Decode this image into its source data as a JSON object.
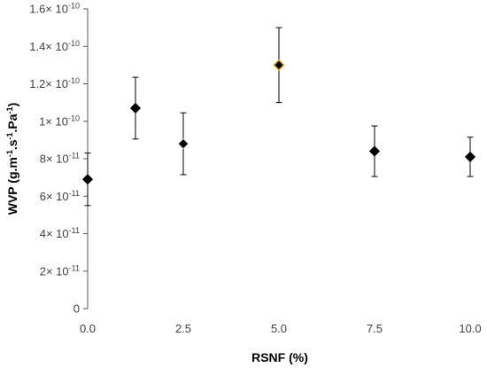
{
  "chart_data": {
    "type": "scatter",
    "xlabel": "RSNF (%)",
    "ylabel_parts": {
      "base": "WVP (g.m",
      "sup1": "-1",
      "mid1": ".s",
      "sup2": "-1",
      "mid2": ".Pa",
      "sup3": "-1",
      "end": ")"
    },
    "xlim": [
      0,
      10
    ],
    "ylim": [
      0,
      1.6e-10
    ],
    "x_ticks": [
      0,
      2.5,
      5,
      7.5,
      10
    ],
    "x_tick_labels": [
      "0.0",
      "2.5",
      "5.0",
      "7.5",
      "10.0"
    ],
    "y_ticks": [
      {
        "value": 0,
        "mantissa": "0",
        "exp": ""
      },
      {
        "value": 2e-11,
        "mantissa": "2",
        "exp": "-11"
      },
      {
        "value": 4e-11,
        "mantissa": "4",
        "exp": "-11"
      },
      {
        "value": 6e-11,
        "mantissa": "6",
        "exp": "-11"
      },
      {
        "value": 8e-11,
        "mantissa": "8",
        "exp": "-11"
      },
      {
        "value": 1e-10,
        "mantissa": "1",
        "exp": "-10"
      },
      {
        "value": 1.2e-10,
        "mantissa": "1.2",
        "exp": "-10"
      },
      {
        "value": 1.4e-10,
        "mantissa": "1.4",
        "exp": "-10"
      },
      {
        "value": 1.6e-10,
        "mantissa": "1.6",
        "exp": "-10"
      }
    ],
    "points": [
      {
        "x": 0,
        "y": 6.9e-11,
        "err": 1.4e-11
      },
      {
        "x": 1.25,
        "y": 1.07e-10,
        "err": 1.65e-11
      },
      {
        "x": 2.5,
        "y": 8.8e-11,
        "err": 1.65e-11
      },
      {
        "x": 5,
        "y": 1.3e-10,
        "err": 2e-11
      },
      {
        "x": 7.5,
        "y": 8.4e-11,
        "err": 1.35e-11
      },
      {
        "x": 10,
        "y": 8.1e-11,
        "err": 1.05e-11
      }
    ],
    "marker_color": "#000000",
    "highlight_index": 3,
    "highlight_edge_color": "#e0a000",
    "grid": false,
    "legend": "none"
  }
}
